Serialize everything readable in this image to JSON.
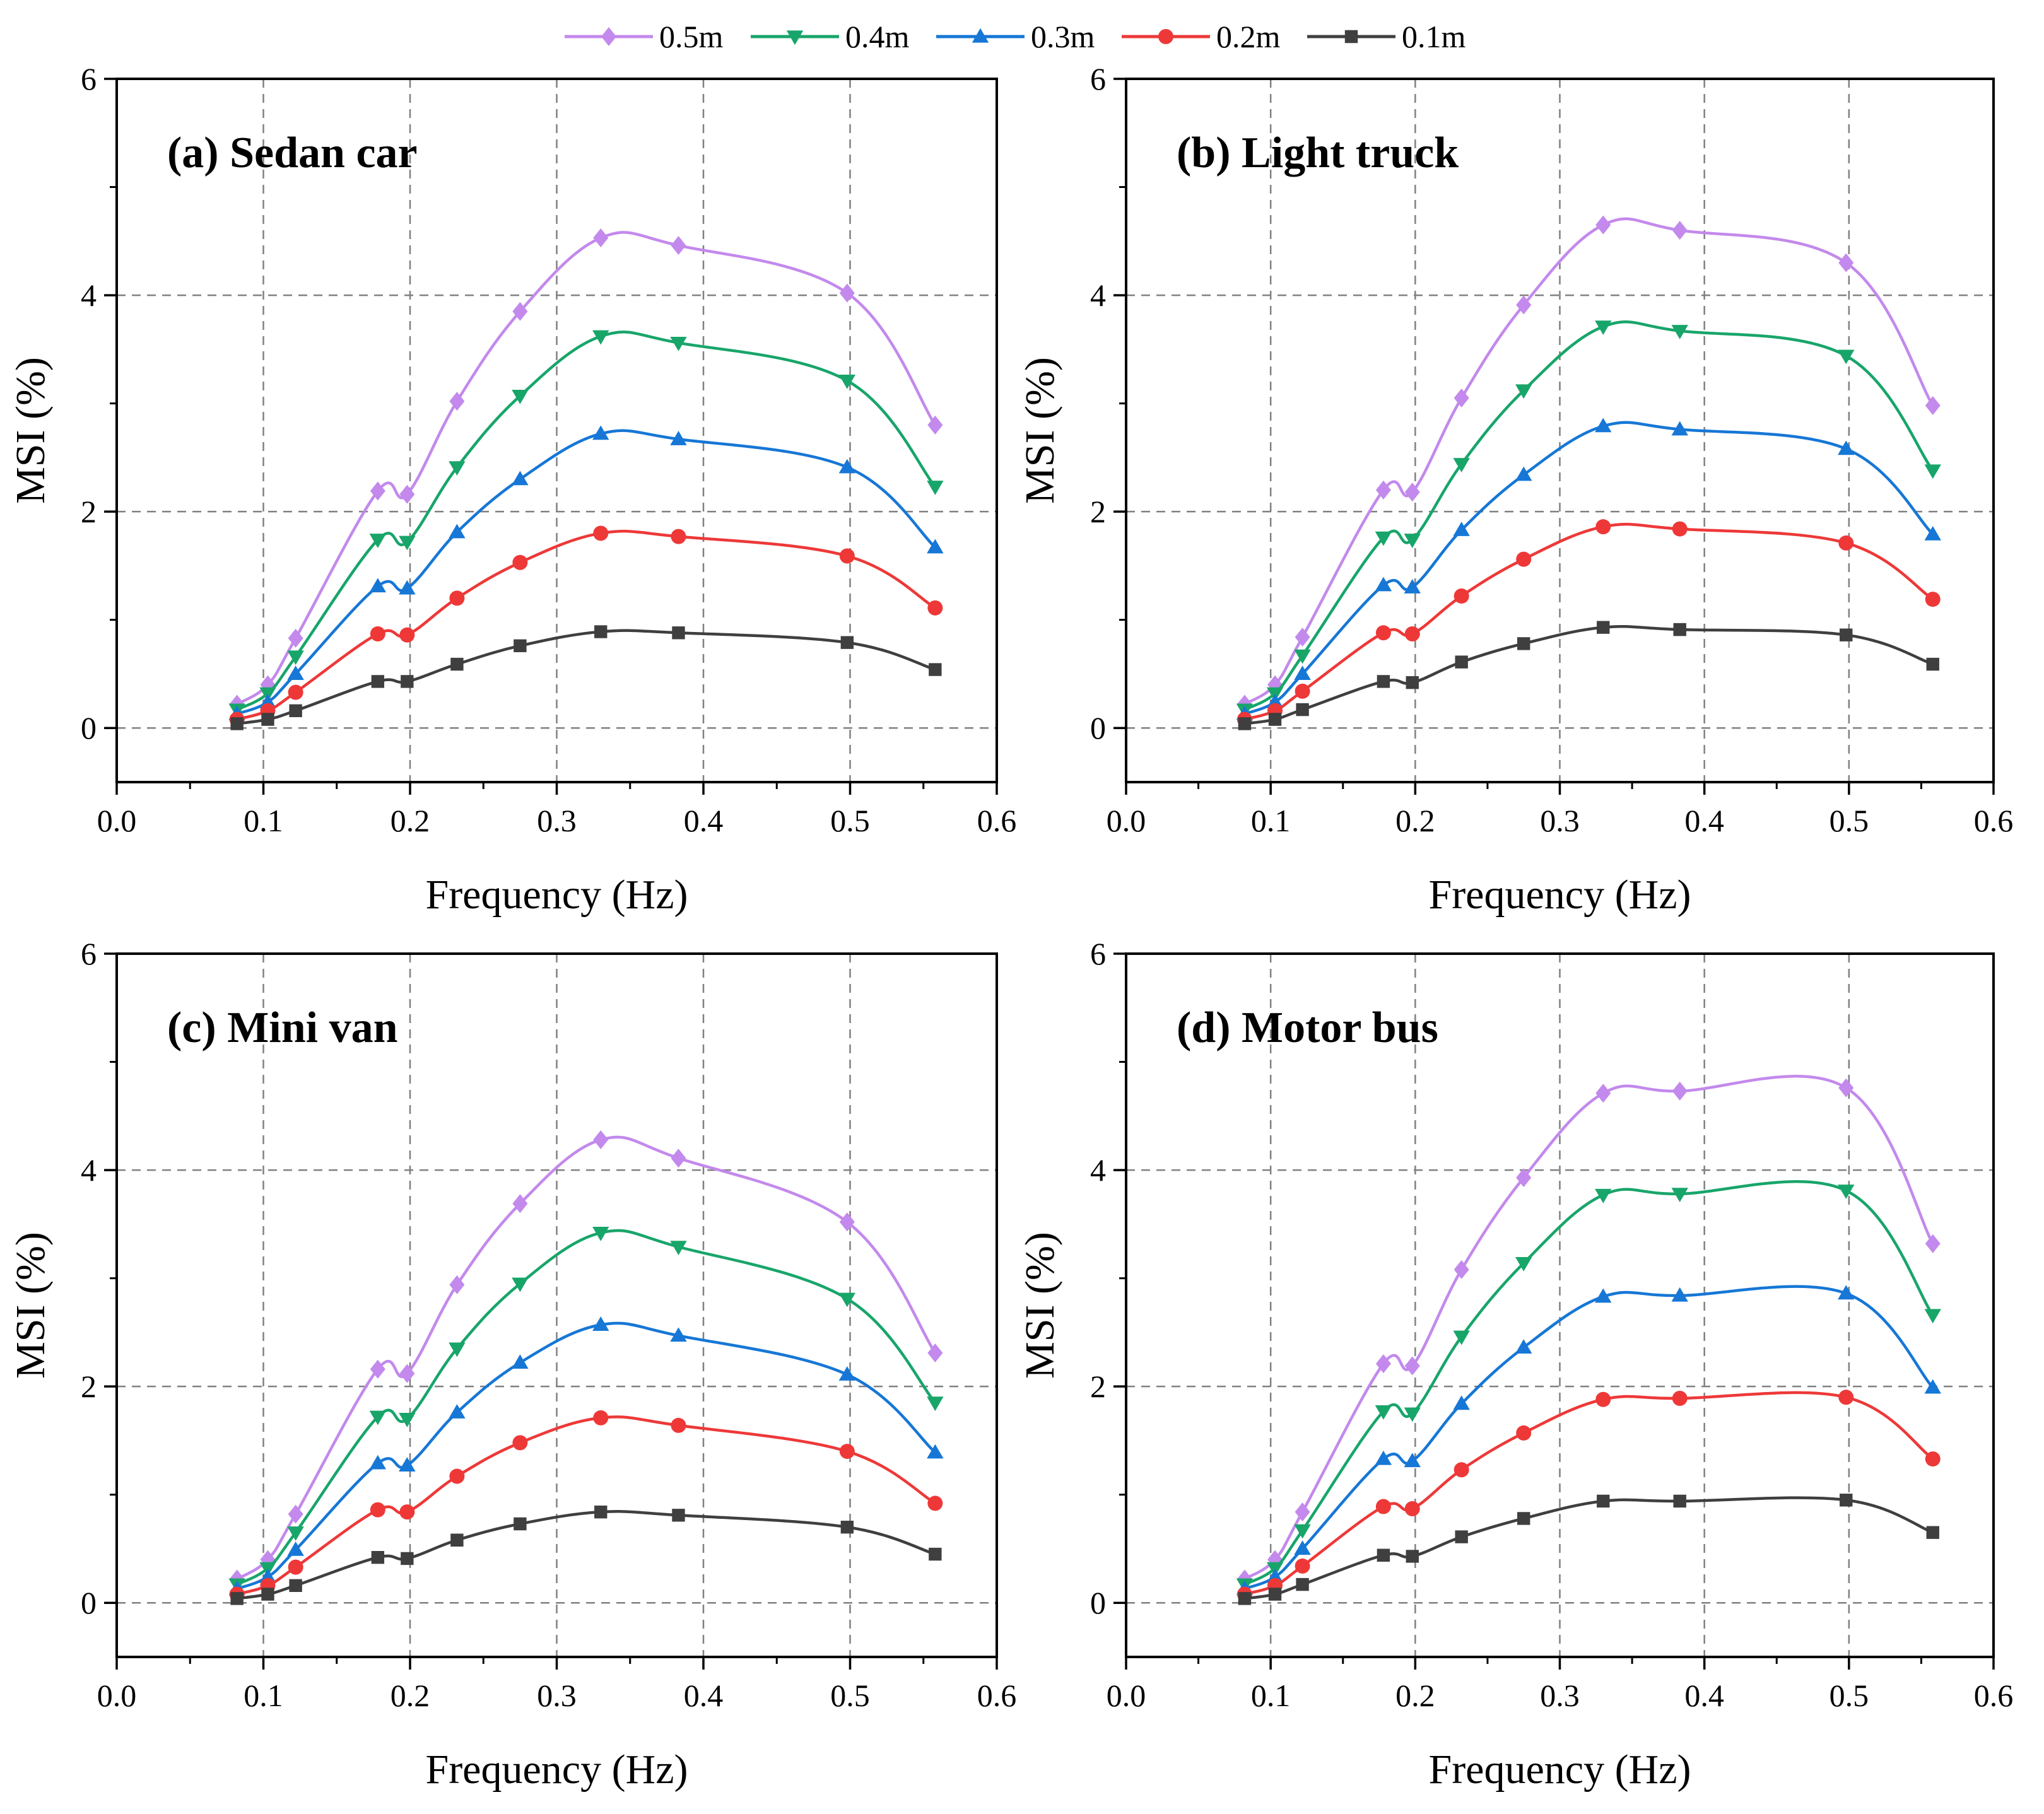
{
  "legend": [
    {
      "series_index": 0,
      "label": "0.5m",
      "color": "#c389ec",
      "marker": "diamond"
    },
    {
      "series_index": 1,
      "label": "0.4m",
      "color": "#18a56a",
      "marker": "triangle-down"
    },
    {
      "series_index": 2,
      "label": "0.3m",
      "color": "#1677d6",
      "marker": "triangle-up"
    },
    {
      "series_index": 3,
      "label": "0.2m",
      "color": "#ee3838",
      "marker": "circle"
    },
    {
      "series_index": 4,
      "label": "0.1m",
      "color": "#3f3f3f",
      "marker": "square"
    }
  ],
  "chart_data": [
    {
      "type": "line",
      "title": "(a) Sedan car",
      "xlabel": "Frequency (Hz)",
      "ylabel": "MSI (%)",
      "xlim": [
        0.0,
        0.6
      ],
      "ylim": [
        -0.5,
        6
      ],
      "xticks": [
        "0.0",
        "0.1",
        "0.2",
        "0.3",
        "0.4",
        "0.5",
        "0.6"
      ],
      "yticks": [
        "0",
        "2",
        "4",
        "6"
      ],
      "grid": true,
      "x": [
        0.082,
        0.103,
        0.122,
        0.178,
        0.198,
        0.232,
        0.275,
        0.33,
        0.383,
        0.498,
        0.558
      ],
      "series": [
        {
          "name": "0.5m",
          "values": [
            0.22,
            0.4,
            0.83,
            2.19,
            2.16,
            3.02,
            3.85,
            4.53,
            4.46,
            4.02,
            2.8
          ]
        },
        {
          "name": "0.4m",
          "values": [
            0.17,
            0.32,
            0.66,
            1.74,
            1.72,
            2.41,
            3.07,
            3.62,
            3.56,
            3.21,
            2.23
          ]
        },
        {
          "name": "0.3m",
          "values": [
            0.13,
            0.24,
            0.5,
            1.31,
            1.29,
            1.81,
            2.3,
            2.72,
            2.67,
            2.41,
            1.67
          ]
        },
        {
          "name": "0.2m",
          "values": [
            0.08,
            0.16,
            0.33,
            0.87,
            0.86,
            1.2,
            1.53,
            1.8,
            1.77,
            1.59,
            1.11
          ]
        },
        {
          "name": "0.1m",
          "values": [
            0.04,
            0.08,
            0.16,
            0.43,
            0.43,
            0.59,
            0.76,
            0.89,
            0.88,
            0.79,
            0.54
          ]
        }
      ]
    },
    {
      "type": "line",
      "title": "(b) Light truck",
      "xlabel": "Frequency (Hz)",
      "ylabel": "MSI (%)",
      "xlim": [
        0.0,
        0.6
      ],
      "ylim": [
        -0.5,
        6
      ],
      "xticks": [
        "0.0",
        "0.1",
        "0.2",
        "0.3",
        "0.4",
        "0.5",
        "0.6"
      ],
      "yticks": [
        "0",
        "2",
        "4",
        "6"
      ],
      "grid": true,
      "x": [
        0.082,
        0.103,
        0.122,
        0.178,
        0.198,
        0.232,
        0.275,
        0.33,
        0.383,
        0.498,
        0.558
      ],
      "series": [
        {
          "name": "0.5m",
          "values": [
            0.22,
            0.4,
            0.84,
            2.2,
            2.18,
            3.05,
            3.91,
            4.65,
            4.6,
            4.3,
            2.98
          ]
        },
        {
          "name": "0.4m",
          "values": [
            0.17,
            0.32,
            0.67,
            1.76,
            1.74,
            2.44,
            3.12,
            3.71,
            3.67,
            3.44,
            2.38
          ]
        },
        {
          "name": "0.3m",
          "values": [
            0.13,
            0.24,
            0.5,
            1.32,
            1.3,
            1.83,
            2.34,
            2.79,
            2.76,
            2.58,
            1.79
          ]
        },
        {
          "name": "0.2m",
          "values": [
            0.08,
            0.16,
            0.34,
            0.88,
            0.87,
            1.22,
            1.56,
            1.86,
            1.84,
            1.71,
            1.19
          ]
        },
        {
          "name": "0.1m",
          "values": [
            0.04,
            0.08,
            0.17,
            0.43,
            0.42,
            0.61,
            0.78,
            0.93,
            0.91,
            0.86,
            0.59
          ]
        }
      ]
    },
    {
      "type": "line",
      "title": "(c) Mini van",
      "xlabel": "Frequency (Hz)",
      "ylabel": "MSI (%)",
      "xlim": [
        0.0,
        0.6
      ],
      "ylim": [
        -0.5,
        6
      ],
      "xticks": [
        "0.0",
        "0.1",
        "0.2",
        "0.3",
        "0.4",
        "0.5",
        "0.6"
      ],
      "yticks": [
        "0",
        "2",
        "4",
        "6"
      ],
      "grid": true,
      "x": [
        0.082,
        0.103,
        0.122,
        0.178,
        0.198,
        0.232,
        0.275,
        0.33,
        0.383,
        0.498,
        0.558
      ],
      "series": [
        {
          "name": "0.5m",
          "values": [
            0.22,
            0.4,
            0.82,
            2.16,
            2.12,
            2.94,
            3.69,
            4.28,
            4.11,
            3.52,
            2.31
          ]
        },
        {
          "name": "0.4m",
          "values": [
            0.17,
            0.32,
            0.65,
            1.72,
            1.7,
            2.35,
            2.95,
            3.42,
            3.29,
            2.81,
            1.85
          ]
        },
        {
          "name": "0.3m",
          "values": [
            0.13,
            0.24,
            0.49,
            1.29,
            1.27,
            1.76,
            2.22,
            2.57,
            2.47,
            2.11,
            1.39
          ]
        },
        {
          "name": "0.2m",
          "values": [
            0.08,
            0.16,
            0.33,
            0.86,
            0.84,
            1.17,
            1.48,
            1.71,
            1.64,
            1.4,
            0.92
          ]
        },
        {
          "name": "0.1m",
          "values": [
            0.04,
            0.08,
            0.16,
            0.42,
            0.41,
            0.58,
            0.73,
            0.84,
            0.81,
            0.7,
            0.45
          ]
        }
      ]
    },
    {
      "type": "line",
      "title": "(d) Motor bus",
      "xlabel": "Frequency (Hz)",
      "ylabel": "MSI (%)",
      "xlim": [
        0.0,
        0.6
      ],
      "ylim": [
        -0.5,
        6
      ],
      "xticks": [
        "0.0",
        "0.1",
        "0.2",
        "0.3",
        "0.4",
        "0.5",
        "0.6"
      ],
      "yticks": [
        "0",
        "2",
        "4",
        "6"
      ],
      "grid": true,
      "x": [
        0.082,
        0.103,
        0.122,
        0.178,
        0.198,
        0.232,
        0.275,
        0.33,
        0.383,
        0.498,
        0.558
      ],
      "series": [
        {
          "name": "0.5m",
          "values": [
            0.22,
            0.4,
            0.84,
            2.21,
            2.19,
            3.08,
            3.93,
            4.71,
            4.73,
            4.76,
            3.32
          ]
        },
        {
          "name": "0.4m",
          "values": [
            0.17,
            0.32,
            0.67,
            1.77,
            1.75,
            2.46,
            3.14,
            3.77,
            3.78,
            3.81,
            2.66
          ]
        },
        {
          "name": "0.3m",
          "values": [
            0.13,
            0.24,
            0.5,
            1.33,
            1.31,
            1.84,
            2.36,
            2.83,
            2.84,
            2.86,
            1.99
          ]
        },
        {
          "name": "0.2m",
          "values": [
            0.08,
            0.16,
            0.34,
            0.89,
            0.87,
            1.23,
            1.57,
            1.88,
            1.89,
            1.9,
            1.33
          ]
        },
        {
          "name": "0.1m",
          "values": [
            0.04,
            0.08,
            0.17,
            0.44,
            0.43,
            0.61,
            0.78,
            0.94,
            0.94,
            0.95,
            0.65
          ]
        }
      ]
    }
  ]
}
